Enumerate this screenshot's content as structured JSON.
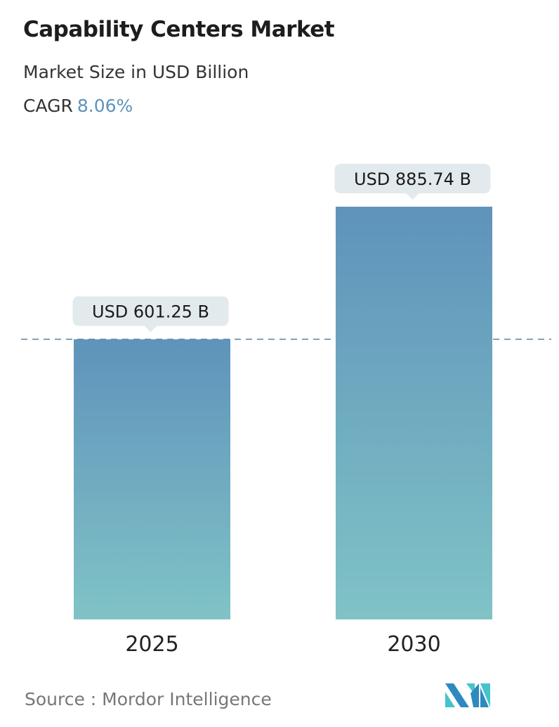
{
  "title": "Capability Centers Market",
  "subtitle": "Market Size in USD Billion",
  "cagr_label": "CAGR",
  "cagr_value": "8.06%",
  "source": "Source :  Mordor Intelligence",
  "colors": {
    "bar_top": "#5f93bb",
    "bar_bottom": "#80c3c6",
    "label_bg": "#e3eaed",
    "dash": "#5f7f98",
    "accent": "#5f93bb"
  },
  "chart_data": {
    "type": "bar",
    "title": "Capability Centers Market",
    "subtitle": "Market Size in USD Billion",
    "categories": [
      "2025",
      "2030"
    ],
    "values": [
      601.25,
      885.74
    ],
    "data_labels": [
      "USD 601.25 B",
      "USD 885.74 B"
    ],
    "xlabel": "",
    "ylabel": "",
    "ylim": [
      0,
      885.74
    ],
    "grid": false,
    "reference_line": "dashed line at 2025 value"
  }
}
